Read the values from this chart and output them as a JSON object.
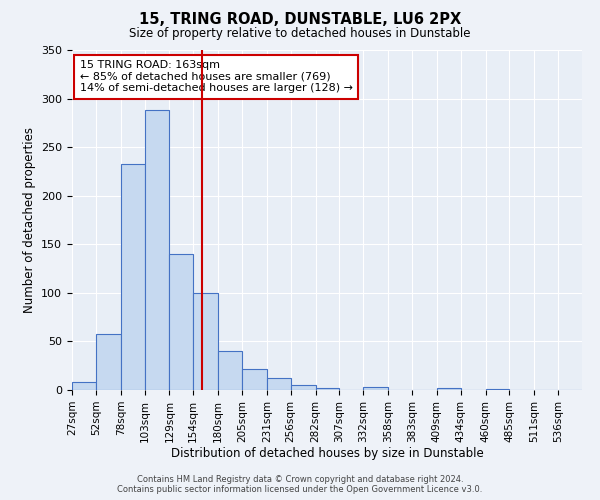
{
  "title": "15, TRING ROAD, DUNSTABLE, LU6 2PX",
  "subtitle": "Size of property relative to detached houses in Dunstable",
  "bar_heights": [
    8,
    58,
    233,
    288,
    140,
    100,
    40,
    22,
    12,
    5,
    2,
    0,
    3,
    0,
    0,
    2,
    0,
    1,
    0,
    0,
    0
  ],
  "bin_labels": [
    "27sqm",
    "52sqm",
    "78sqm",
    "103sqm",
    "129sqm",
    "154sqm",
    "180sqm",
    "205sqm",
    "231sqm",
    "256sqm",
    "282sqm",
    "307sqm",
    "332sqm",
    "358sqm",
    "383sqm",
    "409sqm",
    "434sqm",
    "460sqm",
    "485sqm",
    "511sqm",
    "536sqm"
  ],
  "bin_edges": [
    27,
    52,
    78,
    103,
    129,
    154,
    180,
    205,
    231,
    256,
    282,
    307,
    332,
    358,
    383,
    409,
    434,
    460,
    485,
    511,
    536
  ],
  "bar_color": "#c6d9f0",
  "bar_edge_color": "#4472c4",
  "ylim": [
    0,
    350
  ],
  "yticks": [
    0,
    50,
    100,
    150,
    200,
    250,
    300,
    350
  ],
  "ylabel": "Number of detached properties",
  "xlabel": "Distribution of detached houses by size in Dunstable",
  "vline_x": 163,
  "vline_color": "#cc0000",
  "annotation_title": "15 TRING ROAD: 163sqm",
  "annotation_line1": "← 85% of detached houses are smaller (769)",
  "annotation_line2": "14% of semi-detached houses are larger (128) →",
  "annotation_box_color": "#cc0000",
  "footer1": "Contains HM Land Registry data © Crown copyright and database right 2024.",
  "footer2": "Contains public sector information licensed under the Open Government Licence v3.0.",
  "bg_color": "#eef2f8",
  "plot_bg_color": "#e8eef6"
}
